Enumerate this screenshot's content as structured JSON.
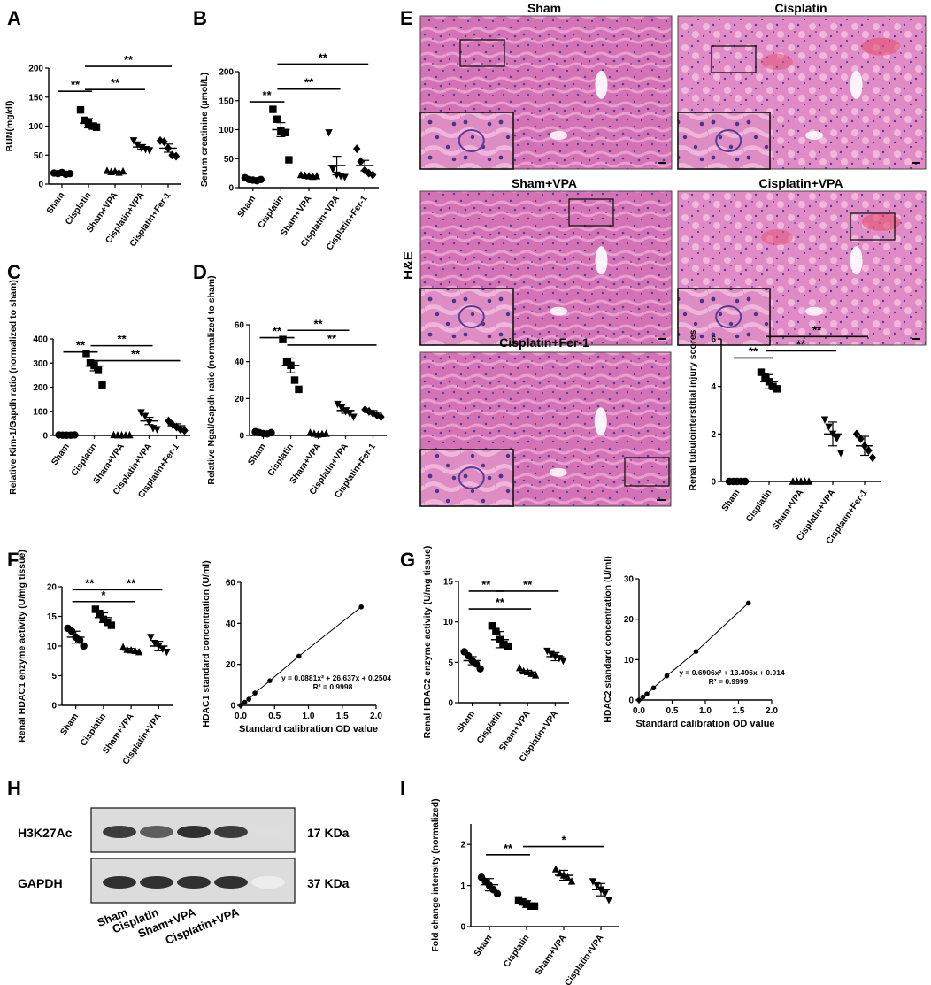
{
  "panel_letters": [
    "A",
    "B",
    "C",
    "D",
    "E",
    "F",
    "G",
    "H",
    "I"
  ],
  "sig": {
    "double": "**",
    "single": "*"
  },
  "he": {
    "stain_label": "H&E",
    "titles": [
      "Sham",
      "Cisplatin",
      "Sham+VPA",
      "Cisplatin+VPA",
      "Cisplatin+Fer-1"
    ],
    "colors": {
      "tissue": "#d472b6",
      "tissue_light": "#ea9dd0",
      "nuclei": "#5a3d95",
      "blood": "#e2506e",
      "lumen": "#ffffff"
    }
  },
  "colors": {
    "ink": "#000000",
    "background": "#ffffff"
  },
  "chart_data": [
    {
      "id": "A",
      "type": "scatter",
      "ylabel": "BUN(mg/dl)",
      "xlabel": "",
      "ylim": [
        0,
        200
      ],
      "yticks": [
        0,
        50,
        100,
        150,
        200
      ],
      "categories": [
        "Sham",
        "Cisplatin",
        "Sham+VPA",
        "Cisplatin+VPA",
        "Cisplatin+Fer-1"
      ],
      "markers": [
        "circle",
        "square",
        "triangle-up",
        "triangle-down",
        "diamond"
      ],
      "points": [
        [
          19,
          18,
          20,
          17,
          18
        ],
        [
          128,
          110,
          105,
          100,
          98
        ],
        [
          23,
          21,
          22,
          20,
          22
        ],
        [
          75,
          68,
          62,
          60,
          58
        ],
        [
          75,
          73,
          62,
          50,
          48
        ]
      ],
      "means": [
        18.5,
        105,
        21.5,
        64,
        62
      ],
      "sems": [
        1,
        8,
        1,
        4,
        7
      ],
      "sig": [
        {
          "from": 0,
          "to": 1,
          "label": "**",
          "y": 160
        },
        {
          "from": 1,
          "to": 3,
          "label": "**",
          "y": 163
        },
        {
          "from": 1,
          "to": 4,
          "label": "**",
          "y": 203
        }
      ]
    },
    {
      "id": "B",
      "type": "scatter",
      "ylabel": "Serum creatinine (µmol/L)",
      "xlabel": "",
      "ylim": [
        0,
        200
      ],
      "yticks": [
        0,
        50,
        100,
        150,
        200
      ],
      "categories": [
        "Sham",
        "Cisplatin",
        "Sham+VPA",
        "Cisplatin+VPA",
        "Cisplatin+Fer-1"
      ],
      "markers": [
        "circle",
        "square",
        "triangle-up",
        "triangle-down",
        "diamond"
      ],
      "points": [
        [
          17,
          14,
          13,
          12,
          14
        ],
        [
          135,
          118,
          98,
          95,
          48
        ],
        [
          22,
          21,
          20,
          19,
          20
        ],
        [
          95,
          32,
          22,
          20,
          18
        ],
        [
          67,
          45,
          30,
          25,
          22
        ]
      ],
      "means": [
        14,
        100,
        20.5,
        38,
        38
      ],
      "sems": [
        1,
        12,
        1,
        16,
        9
      ],
      "sig": [
        {
          "from": 0,
          "to": 1,
          "label": "**",
          "y": 148
        },
        {
          "from": 1,
          "to": 3,
          "label": "**",
          "y": 170
        },
        {
          "from": 1,
          "to": 4,
          "label": "**",
          "y": 213
        }
      ]
    },
    {
      "id": "C",
      "type": "scatter",
      "ylabel": "Relative Kim-1/Gapdh ratio (normalized to sham)",
      "xlabel": "",
      "ylim": [
        0,
        400
      ],
      "yticks": [
        0,
        100,
        200,
        300,
        400
      ],
      "categories": [
        "Sham",
        "Cisplatin",
        "Sham+VPA",
        "Cisplatin+VPA",
        "Cisplatin+Fer-1"
      ],
      "markers": [
        "circle",
        "square",
        "triangle-up",
        "triangle-down",
        "diamond"
      ],
      "points": [
        [
          2,
          1,
          1,
          1,
          2
        ],
        [
          340,
          300,
          290,
          270,
          210
        ],
        [
          2,
          1,
          1,
          1,
          1
        ],
        [
          95,
          80,
          55,
          30,
          25
        ],
        [
          60,
          45,
          35,
          25,
          20
        ]
      ],
      "means": [
        1.4,
        288,
        1.2,
        60,
        40
      ],
      "sems": [
        0.3,
        20,
        0.2,
        15,
        8
      ],
      "sig": [
        {
          "from": 0,
          "to": 1,
          "label": "**",
          "y": 346
        },
        {
          "from": 1,
          "to": 3,
          "label": "**",
          "y": 372
        },
        {
          "from": 1,
          "to": 4,
          "label": "**",
          "y": 310
        }
      ]
    },
    {
      "id": "D",
      "type": "scatter",
      "ylabel": "Relative Ngal/Gapdh ratio (normalized to sham)",
      "xlabel": "",
      "ylim": [
        0,
        60
      ],
      "yticks": [
        0,
        20,
        40,
        60
      ],
      "categories": [
        "Sham",
        "Cisplatin",
        "Sham+VPA",
        "Cisplatin+VPA",
        "Cisplatin+Fer-1"
      ],
      "markers": [
        "circle",
        "square",
        "triangle-up",
        "triangle-down",
        "diamond"
      ],
      "points": [
        [
          2,
          1.5,
          1,
          0.8,
          1.5
        ],
        [
          52,
          40,
          38,
          30,
          25
        ],
        [
          1.5,
          1,
          0.5,
          0.8,
          1
        ],
        [
          17,
          15,
          13,
          12,
          10
        ],
        [
          14,
          13,
          12,
          11,
          10
        ]
      ],
      "means": [
        1.3,
        38,
        0.9,
        13.5,
        12.5
      ],
      "sems": [
        0.3,
        4,
        0.2,
        1.5,
        1
      ],
      "sig": [
        {
          "from": 0,
          "to": 1,
          "label": "**",
          "y": 53
        },
        {
          "from": 1,
          "to": 3,
          "label": "**",
          "y": 57
        },
        {
          "from": 1,
          "to": 4,
          "label": "**",
          "y": 49
        }
      ]
    },
    {
      "id": "E",
      "type": "scatter",
      "ylabel": "Renal tubulointerstitial injury scores",
      "xlabel": "",
      "ylim": [
        0,
        6
      ],
      "yticks": [
        0,
        2,
        4,
        6
      ],
      "categories": [
        "Sham",
        "Cisplatin",
        "Sham+VPA",
        "Cisplatin+VPA",
        "Cisplatin+Fer-1"
      ],
      "markers": [
        "circle",
        "square",
        "triangle-up",
        "triangle-down",
        "diamond"
      ],
      "points": [
        [
          0,
          0,
          0,
          0,
          0
        ],
        [
          4.6,
          4.4,
          4.2,
          4.0,
          3.9
        ],
        [
          0,
          0,
          0,
          0,
          0
        ],
        [
          2.6,
          2.3,
          2.0,
          1.8,
          1.2
        ],
        [
          2.0,
          1.8,
          1.5,
          1.3,
          1.0
        ]
      ],
      "means": [
        0,
        4.2,
        0,
        2.0,
        1.5
      ],
      "sems": [
        0,
        0.3,
        0,
        0.5,
        0.4
      ],
      "sig": [
        {
          "from": 0,
          "to": 1,
          "label": "**",
          "y": 5.2
        },
        {
          "from": 1,
          "to": 3,
          "label": "**",
          "y": 5.5
        },
        {
          "from": 1,
          "to": 4,
          "label": "**",
          "y": 6.1
        }
      ]
    },
    {
      "id": "F",
      "type": "scatter",
      "ylabel": "Renal HDAC1 enzyme activity (U/mg tissue)",
      "xlabel": "",
      "ylim": [
        0,
        20
      ],
      "yticks": [
        0,
        5,
        10,
        15,
        20
      ],
      "categories": [
        "Sham",
        "Cisplatin",
        "Sham+VPA",
        "Cisplatin+VPA"
      ],
      "markers": [
        "circle",
        "square",
        "triangle-up",
        "triangle-down"
      ],
      "points": [
        [
          13,
          12.5,
          11.5,
          11,
          10
        ],
        [
          16.2,
          15.5,
          14.5,
          14,
          13.5
        ],
        [
          9.8,
          9.4,
          9.3,
          9.2,
          9.0
        ],
        [
          11.5,
          10.5,
          10,
          9.5,
          9.0
        ]
      ],
      "means": [
        11.5,
        14.8,
        9.3,
        10
      ],
      "sems": [
        1,
        0.8,
        0.3,
        0.8
      ],
      "sig": [
        {
          "from": 0,
          "to": 1,
          "label": "**",
          "y": 19.5
        },
        {
          "from": 1,
          "to": 3,
          "label": "**",
          "y": 19.5
        },
        {
          "from": 0,
          "to": 2,
          "label": "*",
          "y": 17.5
        }
      ]
    },
    {
      "id": "F2",
      "type": "line",
      "ylabel": "HDAC1 standard concentration (U/ml)",
      "xlabel": "Standard calibration OD value",
      "xlim": [
        0,
        2.0
      ],
      "ylim": [
        0,
        60
      ],
      "xticks": [
        0.0,
        0.5,
        1.0,
        1.5,
        2.0
      ],
      "xtick_labels": [
        "0.0",
        "0.5",
        "1.0",
        "1.5",
        "2.0"
      ],
      "yticks": [
        0,
        20,
        40,
        60
      ],
      "x": [
        0,
        0.06,
        0.12,
        0.21,
        0.43,
        0.86,
        1.78
      ],
      "y": [
        0,
        1.5,
        3,
        6,
        12,
        24,
        48
      ],
      "annotations": [
        "y = 0.0881x² + 26.637x + 0.2504",
        "R² = 0.9998"
      ]
    },
    {
      "id": "G",
      "type": "scatter",
      "ylabel": "Renal HDAC2 enzyme activity (U/mg tissue)",
      "xlabel": "",
      "ylim": [
        0,
        15
      ],
      "yticks": [
        0,
        5,
        10,
        15
      ],
      "categories": [
        "Sham",
        "Cisplatin",
        "Sham+VPA",
        "Cisplatin+VPA"
      ],
      "markers": [
        "circle",
        "square",
        "triangle-up",
        "triangle-down"
      ],
      "points": [
        [
          6.3,
          5.8,
          5.2,
          4.8,
          4.2
        ],
        [
          9.5,
          8.8,
          7.8,
          7.2,
          7.0
        ],
        [
          4.3,
          3.9,
          3.8,
          3.6,
          3.4
        ],
        [
          6.4,
          6.0,
          5.7,
          5.5,
          5.2
        ]
      ],
      "means": [
        5.2,
        7.8,
        3.8,
        5.7
      ],
      "sems": [
        0.5,
        1.0,
        0.2,
        0.5
      ],
      "sig": [
        {
          "from": 0,
          "to": 1,
          "label": "**",
          "y": 13.8
        },
        {
          "from": 1,
          "to": 3,
          "label": "**",
          "y": 13.8
        },
        {
          "from": 0,
          "to": 2,
          "label": "**",
          "y": 11.6
        }
      ]
    },
    {
      "id": "G2",
      "type": "line",
      "ylabel": "HDAC2 standard concentration (U/ml)",
      "xlabel": "Standard calibration OD value",
      "xlim": [
        0,
        2.0
      ],
      "ylim": [
        0,
        30
      ],
      "xticks": [
        0.0,
        0.5,
        1.0,
        1.5,
        2.0
      ],
      "xtick_labels": [
        "0.0",
        "0.5",
        "1.0",
        "1.5",
        "2.0"
      ],
      "yticks": [
        0,
        10,
        20,
        30
      ],
      "x": [
        0,
        0.06,
        0.12,
        0.22,
        0.42,
        0.86,
        1.65
      ],
      "y": [
        0,
        0.75,
        1.5,
        3,
        6,
        12,
        24
      ],
      "annotations": [
        "y = 0.6906x² + 13.496x + 0.014",
        "R² = 0.9999"
      ]
    },
    {
      "id": "I",
      "type": "scatter",
      "ylabel": "Fold change intensity (normalized)",
      "xlabel": "",
      "ylim": [
        0,
        2.5
      ],
      "yticks": [
        0,
        1,
        2
      ],
      "ytick_labels": [
        "0",
        "1",
        "2"
      ],
      "categories": [
        "Sham",
        "Cisplatin",
        "Sham+VPA",
        "Cisplatin+VPA"
      ],
      "markers": [
        "circle",
        "square",
        "triangle-up",
        "triangle-down"
      ],
      "points": [
        [
          1.2,
          1.1,
          1.0,
          0.9,
          0.8
        ],
        [
          0.65,
          0.6,
          0.55,
          0.5,
          0.5
        ],
        [
          1.4,
          1.3,
          1.25,
          1.2,
          1.1
        ],
        [
          1.1,
          1.0,
          0.9,
          0.8,
          0.65
        ]
      ],
      "means": [
        1.02,
        0.55,
        1.25,
        0.9
      ],
      "sems": [
        0.15,
        0.08,
        0.12,
        0.15
      ],
      "sig": [
        {
          "from": 0,
          "to": 1,
          "label": "**",
          "y": 1.75
        },
        {
          "from": 1,
          "to": 3,
          "label": "*",
          "y": 1.95
        }
      ]
    }
  ],
  "blot": {
    "rows": [
      {
        "label": "H3K27Ac",
        "size": "17 KDa",
        "intensity": [
          0.85,
          0.7,
          0.9,
          0.85,
          0.15
        ]
      },
      {
        "label": "GAPDH",
        "size": "37 KDa",
        "intensity": [
          0.9,
          0.9,
          0.9,
          0.9,
          0.08
        ]
      }
    ],
    "lanes": [
      "Sham",
      "Cisplatin",
      "Sham+VPA",
      "Cisplatin+VPA"
    ]
  }
}
